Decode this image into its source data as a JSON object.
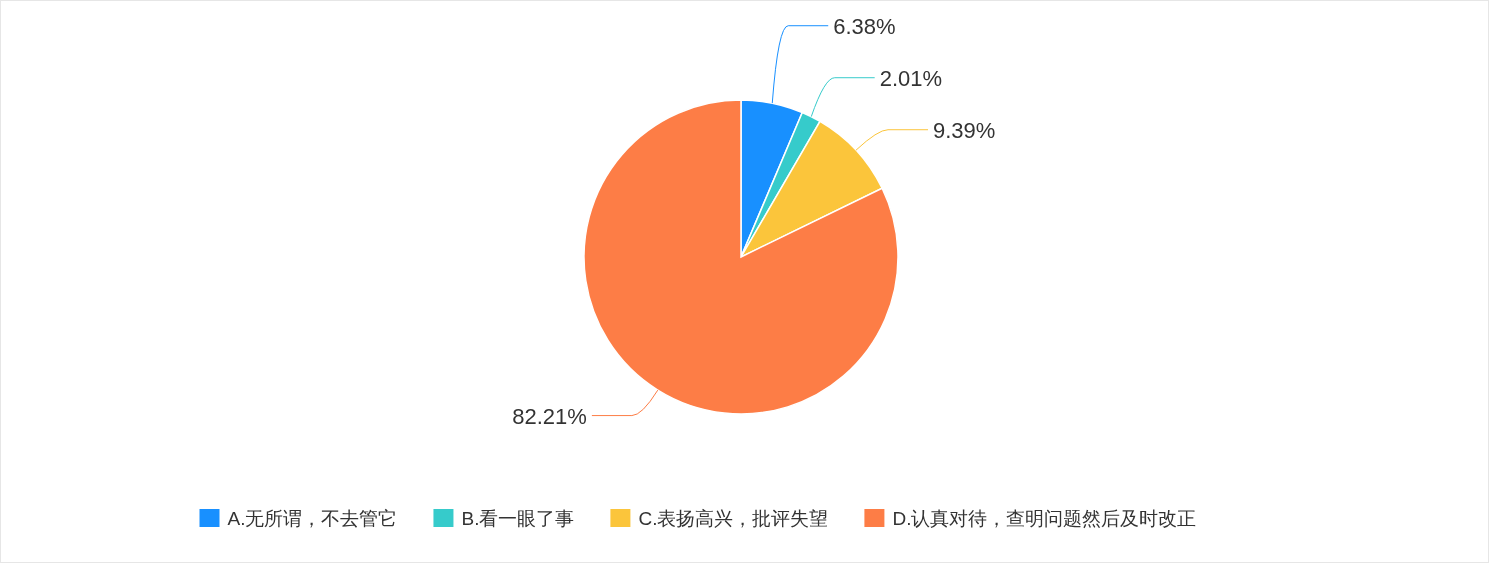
{
  "chart_data": {
    "type": "pie",
    "categories": [
      "A.无所谓，不去管它",
      "B.看一眼了事",
      "C.表扬高兴，批评失望",
      "D.认真对待，查明问题然后及时改正"
    ],
    "values": [
      6.38,
      2.01,
      9.39,
      82.21
    ],
    "value_labels": [
      "6.38%",
      "2.01%",
      "9.39%",
      "82.21%"
    ],
    "colors": [
      "#1890ff",
      "#36cbcb",
      "#fbc53b",
      "#fd7d46"
    ],
    "legend": "bottom"
  }
}
